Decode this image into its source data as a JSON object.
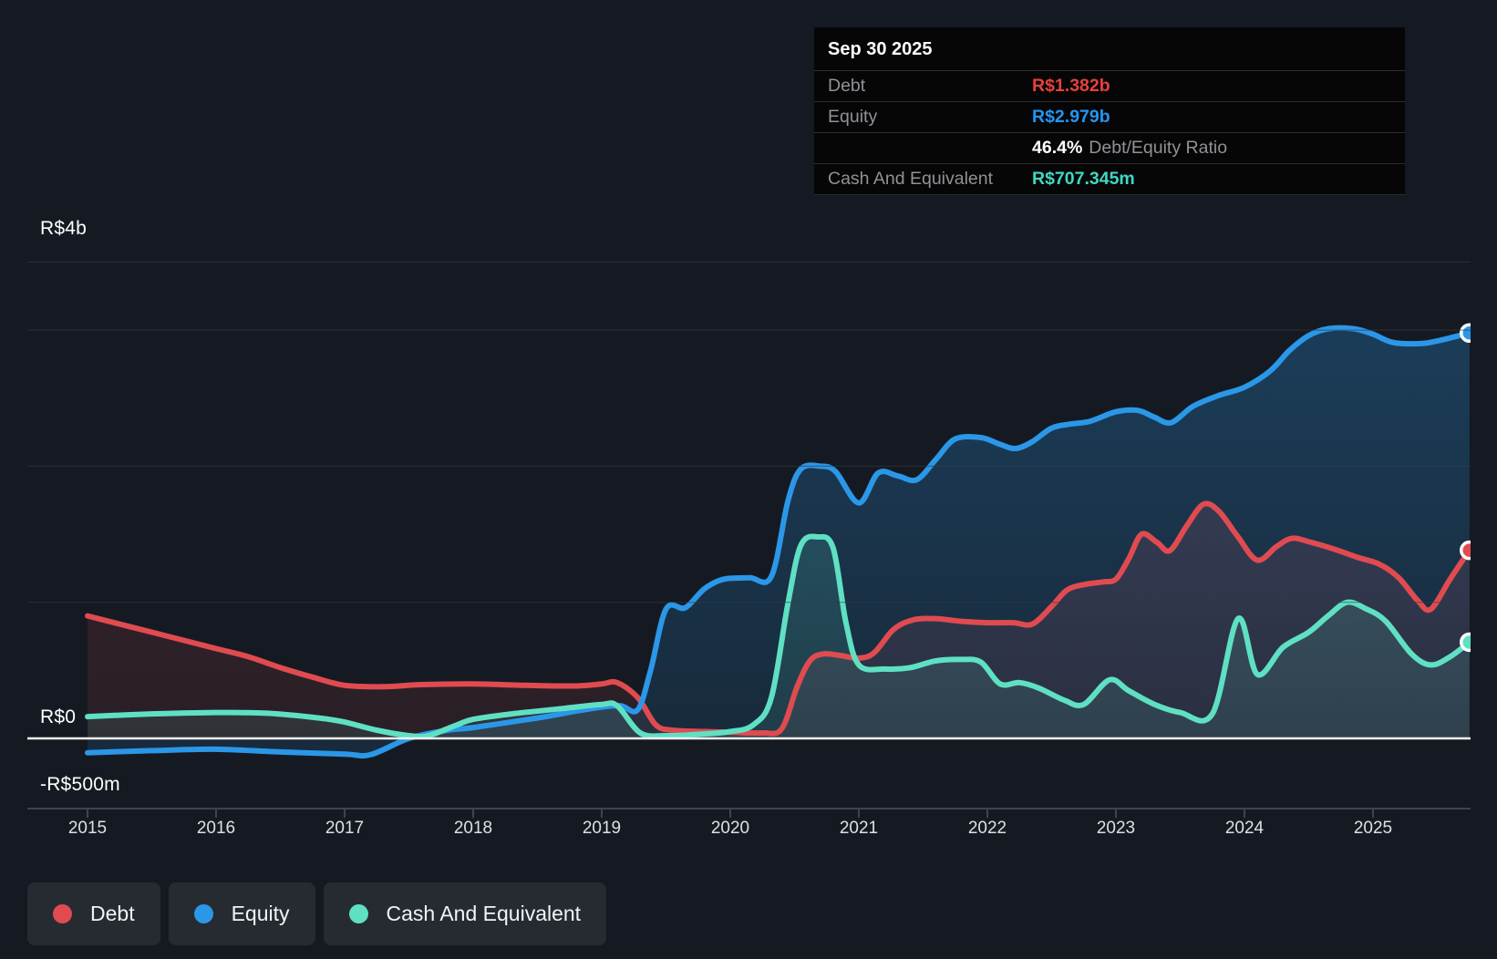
{
  "colors": {
    "debt": "#e04b50",
    "equity": "#2b97e8",
    "cash": "#5fe0c3",
    "debt_value_text": "#e8403c",
    "equity_value_text": "#2196f3",
    "cash_value_text": "#3fd8c2",
    "zero_line": "#f6f3f3",
    "gridline": "#333945",
    "axis_line": "#3e444e"
  },
  "tooltip": {
    "title": "Sep 30 2025",
    "debt_label": "Debt",
    "debt_value": "R$1.382b",
    "equity_label": "Equity",
    "equity_value": "R$2.979b",
    "ratio_value": "46.4%",
    "ratio_label": "Debt/Equity Ratio",
    "cash_label": "Cash And Equivalent",
    "cash_value": "R$707.345m"
  },
  "legend": {
    "items": [
      {
        "label": "Debt",
        "color_key": "debt"
      },
      {
        "label": "Equity",
        "color_key": "equity"
      },
      {
        "label": "Cash And Equivalent",
        "color_key": "cash"
      }
    ]
  },
  "chart": {
    "y_axis_labels": [
      "R$4b",
      "R$0",
      "-R$500m"
    ],
    "x_axis_labels": [
      "2015",
      "2016",
      "2017",
      "2018",
      "2019",
      "2020",
      "2021",
      "2022",
      "2023",
      "2024",
      "2025"
    ]
  },
  "chart_data": {
    "type": "area",
    "title": "Debt, Equity and Cash And Equivalent history",
    "x_unit": "year",
    "y_unit": "R$ billions",
    "x_range": [
      2015.0,
      2025.75
    ],
    "y_axis_ticks": [
      {
        "label": "R$4b",
        "value": 4
      },
      {
        "label": "R$0",
        "value": 0
      },
      {
        "label": "-R$500m",
        "value": -0.5
      }
    ],
    "gridline_values": [
      3.5,
      3,
      2,
      1
    ],
    "x_ticks": [
      2015,
      2016,
      2017,
      2018,
      2019,
      2020,
      2021,
      2022,
      2023,
      2024,
      2025
    ],
    "legend_position": "bottom-left",
    "series": [
      {
        "name": "Debt",
        "color_key": "debt",
        "points": [
          [
            2015.0,
            0.9
          ],
          [
            2015.25,
            0.84
          ],
          [
            2015.5,
            0.78
          ],
          [
            2015.75,
            0.72
          ],
          [
            2016.0,
            0.66
          ],
          [
            2016.25,
            0.6
          ],
          [
            2016.5,
            0.52
          ],
          [
            2016.75,
            0.45
          ],
          [
            2017.0,
            0.39
          ],
          [
            2017.3,
            0.38
          ],
          [
            2017.6,
            0.395
          ],
          [
            2018.0,
            0.4
          ],
          [
            2018.4,
            0.39
          ],
          [
            2018.8,
            0.385
          ],
          [
            2019.0,
            0.4
          ],
          [
            2019.12,
            0.41
          ],
          [
            2019.28,
            0.3
          ],
          [
            2019.42,
            0.1
          ],
          [
            2019.55,
            0.06
          ],
          [
            2019.8,
            0.05
          ],
          [
            2020.0,
            0.045
          ],
          [
            2020.25,
            0.04
          ],
          [
            2020.4,
            0.07
          ],
          [
            2020.52,
            0.38
          ],
          [
            2020.62,
            0.57
          ],
          [
            2020.72,
            0.62
          ],
          [
            2020.85,
            0.61
          ],
          [
            2021.0,
            0.59
          ],
          [
            2021.12,
            0.63
          ],
          [
            2021.27,
            0.8
          ],
          [
            2021.42,
            0.87
          ],
          [
            2021.6,
            0.88
          ],
          [
            2021.8,
            0.86
          ],
          [
            2022.0,
            0.85
          ],
          [
            2022.2,
            0.85
          ],
          [
            2022.35,
            0.84
          ],
          [
            2022.5,
            0.97
          ],
          [
            2022.62,
            1.09
          ],
          [
            2022.75,
            1.13
          ],
          [
            2022.9,
            1.15
          ],
          [
            2023.0,
            1.17
          ],
          [
            2023.1,
            1.32
          ],
          [
            2023.2,
            1.5
          ],
          [
            2023.32,
            1.44
          ],
          [
            2023.42,
            1.38
          ],
          [
            2023.55,
            1.56
          ],
          [
            2023.68,
            1.72
          ],
          [
            2023.8,
            1.67
          ],
          [
            2023.95,
            1.48
          ],
          [
            2024.1,
            1.31
          ],
          [
            2024.25,
            1.41
          ],
          [
            2024.37,
            1.47
          ],
          [
            2024.52,
            1.44
          ],
          [
            2024.7,
            1.39
          ],
          [
            2024.88,
            1.33
          ],
          [
            2025.05,
            1.28
          ],
          [
            2025.2,
            1.18
          ],
          [
            2025.35,
            1.01
          ],
          [
            2025.45,
            0.95
          ],
          [
            2025.6,
            1.17
          ],
          [
            2025.75,
            1.382
          ]
        ]
      },
      {
        "name": "Equity",
        "color_key": "equity",
        "points": [
          [
            2015.0,
            -0.105
          ],
          [
            2015.5,
            -0.09
          ],
          [
            2016.0,
            -0.08
          ],
          [
            2016.5,
            -0.1
          ],
          [
            2017.0,
            -0.115
          ],
          [
            2017.2,
            -0.12
          ],
          [
            2017.5,
            0.0
          ],
          [
            2017.8,
            0.06
          ],
          [
            2018.0,
            0.08
          ],
          [
            2018.5,
            0.15
          ],
          [
            2018.8,
            0.2
          ],
          [
            2019.0,
            0.23
          ],
          [
            2019.15,
            0.24
          ],
          [
            2019.28,
            0.21
          ],
          [
            2019.38,
            0.5
          ],
          [
            2019.5,
            0.95
          ],
          [
            2019.65,
            0.96
          ],
          [
            2019.8,
            1.1
          ],
          [
            2019.95,
            1.17
          ],
          [
            2020.15,
            1.18
          ],
          [
            2020.32,
            1.19
          ],
          [
            2020.45,
            1.75
          ],
          [
            2020.55,
            1.98
          ],
          [
            2020.7,
            2.0
          ],
          [
            2020.82,
            1.96
          ],
          [
            2021.0,
            1.73
          ],
          [
            2021.15,
            1.95
          ],
          [
            2021.3,
            1.93
          ],
          [
            2021.45,
            1.9
          ],
          [
            2021.6,
            2.05
          ],
          [
            2021.75,
            2.2
          ],
          [
            2021.95,
            2.21
          ],
          [
            2022.1,
            2.16
          ],
          [
            2022.22,
            2.13
          ],
          [
            2022.35,
            2.18
          ],
          [
            2022.5,
            2.28
          ],
          [
            2022.65,
            2.31
          ],
          [
            2022.8,
            2.33
          ],
          [
            2023.0,
            2.4
          ],
          [
            2023.17,
            2.41
          ],
          [
            2023.3,
            2.36
          ],
          [
            2023.43,
            2.32
          ],
          [
            2023.6,
            2.44
          ],
          [
            2023.8,
            2.52
          ],
          [
            2024.0,
            2.58
          ],
          [
            2024.2,
            2.7
          ],
          [
            2024.35,
            2.85
          ],
          [
            2024.5,
            2.96
          ],
          [
            2024.65,
            3.01
          ],
          [
            2024.85,
            3.01
          ],
          [
            2025.0,
            2.97
          ],
          [
            2025.15,
            2.91
          ],
          [
            2025.35,
            2.9
          ],
          [
            2025.5,
            2.92
          ],
          [
            2025.75,
            2.979
          ]
        ]
      },
      {
        "name": "Cash And Equivalent",
        "color_key": "cash",
        "points": [
          [
            2015.0,
            0.16
          ],
          [
            2015.5,
            0.18
          ],
          [
            2016.0,
            0.19
          ],
          [
            2016.4,
            0.185
          ],
          [
            2016.8,
            0.15
          ],
          [
            2017.0,
            0.12
          ],
          [
            2017.25,
            0.06
          ],
          [
            2017.5,
            0.02
          ],
          [
            2017.65,
            0.02
          ],
          [
            2017.85,
            0.09
          ],
          [
            2018.0,
            0.14
          ],
          [
            2018.3,
            0.18
          ],
          [
            2018.7,
            0.22
          ],
          [
            2019.0,
            0.25
          ],
          [
            2019.12,
            0.24
          ],
          [
            2019.3,
            0.04
          ],
          [
            2019.5,
            0.02
          ],
          [
            2019.75,
            0.03
          ],
          [
            2020.0,
            0.05
          ],
          [
            2020.18,
            0.1
          ],
          [
            2020.32,
            0.3
          ],
          [
            2020.45,
            1.0
          ],
          [
            2020.55,
            1.42
          ],
          [
            2020.68,
            1.48
          ],
          [
            2020.8,
            1.4
          ],
          [
            2020.9,
            0.85
          ],
          [
            2021.0,
            0.54
          ],
          [
            2021.2,
            0.51
          ],
          [
            2021.4,
            0.52
          ],
          [
            2021.6,
            0.57
          ],
          [
            2021.8,
            0.58
          ],
          [
            2021.95,
            0.56
          ],
          [
            2022.1,
            0.4
          ],
          [
            2022.25,
            0.41
          ],
          [
            2022.4,
            0.37
          ],
          [
            2022.6,
            0.28
          ],
          [
            2022.75,
            0.25
          ],
          [
            2022.95,
            0.43
          ],
          [
            2023.1,
            0.35
          ],
          [
            2023.3,
            0.25
          ],
          [
            2023.5,
            0.19
          ],
          [
            2023.75,
            0.18
          ],
          [
            2023.95,
            0.88
          ],
          [
            2024.1,
            0.47
          ],
          [
            2024.3,
            0.67
          ],
          [
            2024.5,
            0.78
          ],
          [
            2024.65,
            0.9
          ],
          [
            2024.8,
            1.0
          ],
          [
            2024.95,
            0.95
          ],
          [
            2025.1,
            0.86
          ],
          [
            2025.3,
            0.62
          ],
          [
            2025.45,
            0.54
          ],
          [
            2025.6,
            0.6
          ],
          [
            2025.75,
            0.707
          ]
        ]
      }
    ],
    "end_values": {
      "Debt": 1.382,
      "Equity": 2.979,
      "Cash And Equivalent": 0.707345
    }
  }
}
